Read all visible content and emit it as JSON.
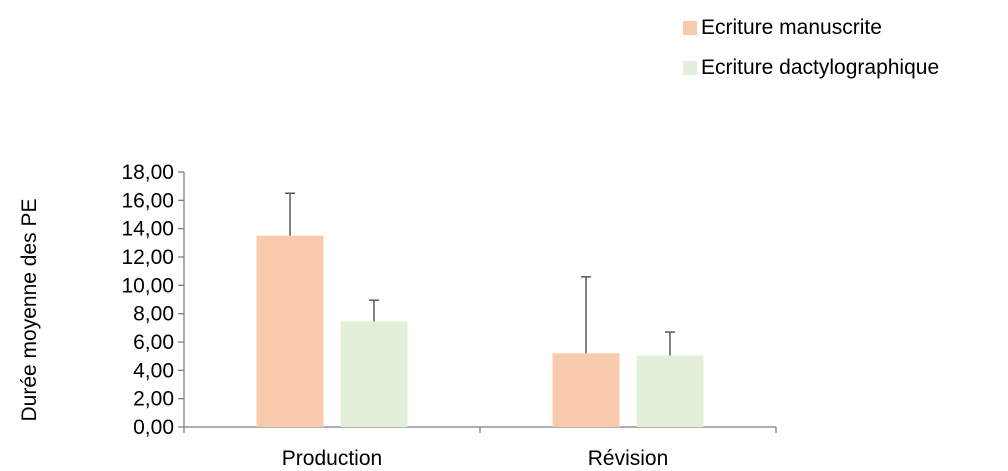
{
  "chart_data": {
    "type": "bar",
    "ylabel": "Durée moyenne des PE",
    "xlabel": "",
    "categories": [
      "Production",
      "Révision"
    ],
    "ylim": [
      0,
      18
    ],
    "yticks": [
      "0,00",
      "2,00",
      "4,00",
      "6,00",
      "8,00",
      "10,00",
      "12,00",
      "14,00",
      "16,00",
      "18,00"
    ],
    "grid": false,
    "legend_position": "top-right",
    "error_bars": "positive",
    "series": [
      {
        "name": "Ecriture manuscrite",
        "color": "#f8cbad",
        "values": [
          13.5,
          5.2
        ],
        "errors": [
          3.0,
          5.4
        ]
      },
      {
        "name": "Ecriture dactylographique",
        "color": "#e2f0d9",
        "values": [
          7.45,
          5.05
        ],
        "errors": [
          1.5,
          1.65
        ]
      }
    ]
  }
}
